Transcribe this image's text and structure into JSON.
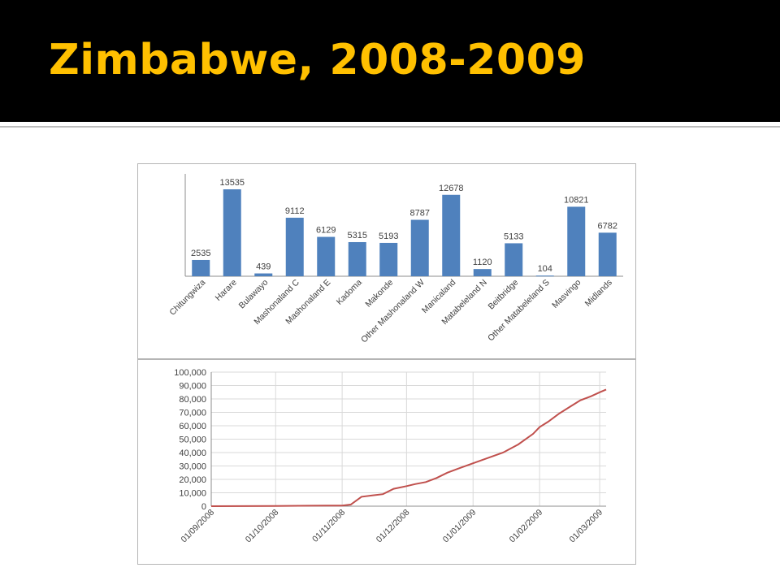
{
  "slide": {
    "title": "Zimbabwe, 2008-2009"
  },
  "colors": {
    "title": "#ffc000",
    "bar": "#4f81bd",
    "line": "#c0504d",
    "background": "#000000"
  },
  "chart_data": [
    {
      "type": "bar",
      "categories": [
        "Chitungwiza",
        "Harare",
        "Bulawayo",
        "Mashonaland C",
        "Mashonaland E",
        "Kadoma",
        "Makonde",
        "Other Mashonaland W",
        "Manicaland",
        "Matabeleland N",
        "Beitbridge",
        "Other Matabeleland S",
        "Masvingo",
        "Midlands"
      ],
      "values": [
        2535,
        13535,
        439,
        9112,
        6129,
        5315,
        5193,
        8787,
        12678,
        1120,
        5133,
        104,
        10821,
        6782
      ],
      "data_labels": [
        "2535",
        "13535",
        "439",
        "9112",
        "6129",
        "5315",
        "5193",
        "8787",
        "12678",
        "1120",
        "5133",
        "104",
        "10821",
        "6782"
      ],
      "ylim": [
        0,
        15000
      ],
      "legend": "none",
      "grid": false
    },
    {
      "type": "line",
      "x_ticks": [
        "01/09/2008",
        "01/10/2008",
        "01/11/2008",
        "01/12/2008",
        "01/01/2009",
        "01/02/2009",
        "01/03/2009"
      ],
      "y_ticks": [
        "0",
        "10,000",
        "20,000",
        "30,000",
        "40,000",
        "50,000",
        "60,000",
        "70,000",
        "80,000",
        "90,000",
        "100,000"
      ],
      "ylim": [
        0,
        100000
      ],
      "xlim": [
        "2008-09-01",
        "2009-03-04"
      ],
      "grid": true,
      "legend": "none",
      "series": [
        {
          "x": [
            "2008-09-01",
            "2008-10-01",
            "2008-10-25",
            "2008-11-01",
            "2008-11-05",
            "2008-11-10",
            "2008-11-15",
            "2008-11-20",
            "2008-11-25",
            "2008-12-01",
            "2008-12-05",
            "2008-12-10",
            "2008-12-15",
            "2008-12-20",
            "2008-12-25",
            "2009-01-01",
            "2009-01-08",
            "2009-01-15",
            "2009-01-22",
            "2009-01-29",
            "2009-02-01",
            "2009-02-05",
            "2009-02-10",
            "2009-02-15",
            "2009-02-20",
            "2009-02-25",
            "2009-03-01",
            "2009-03-04"
          ],
          "values": [
            0,
            200,
            400,
            500,
            1200,
            7000,
            8000,
            9000,
            13000,
            15000,
            16500,
            18000,
            21000,
            25000,
            28000,
            32000,
            36000,
            40000,
            46000,
            54000,
            59000,
            63000,
            69000,
            74000,
            79000,
            82000,
            85000,
            87000
          ]
        }
      ]
    }
  ]
}
